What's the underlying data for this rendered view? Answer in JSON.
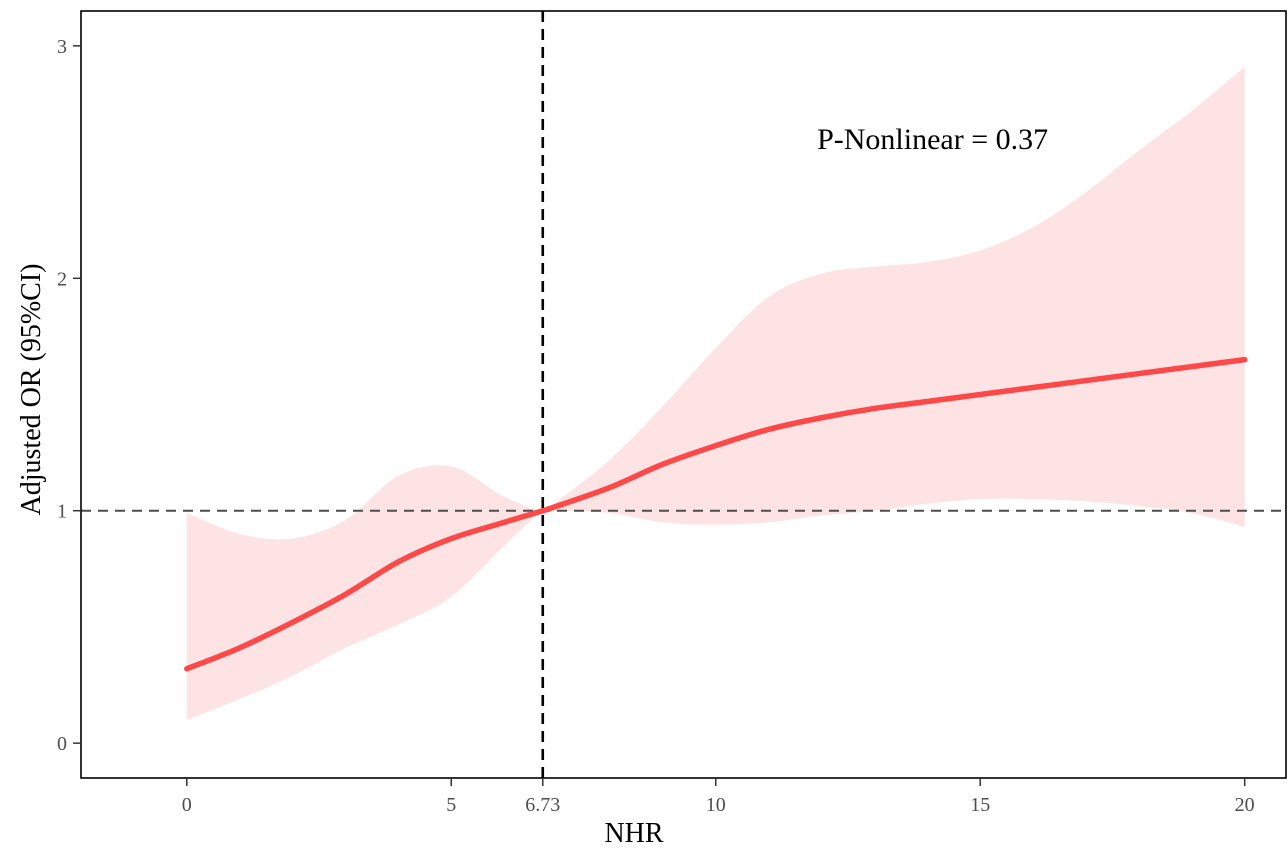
{
  "chart_data": {
    "type": "line",
    "xlabel": "NHR",
    "ylabel": "Adjusted OR (95%CI)",
    "xlim": [
      -2,
      20.8
    ],
    "ylim": [
      -0.15,
      3.15
    ],
    "x_ticks": [
      {
        "value": 0,
        "label": "0"
      },
      {
        "value": 5,
        "label": "5"
      },
      {
        "value": 6.73,
        "label": "6.73"
      },
      {
        "value": 10,
        "label": "10"
      },
      {
        "value": 15,
        "label": "15"
      },
      {
        "value": 20,
        "label": "20"
      }
    ],
    "y_ticks": [
      {
        "value": 0,
        "label": "0"
      },
      {
        "value": 1,
        "label": "1"
      },
      {
        "value": 2,
        "label": "2"
      },
      {
        "value": 3,
        "label": "3"
      }
    ],
    "reference_lines": [
      {
        "axis": "x",
        "value": 6.73,
        "style": "dashed",
        "color": "#000000"
      },
      {
        "axis": "y",
        "value": 1,
        "style": "dashed",
        "color": "#4d4d4d"
      }
    ],
    "annotation": {
      "text": "P-Nonlinear = 0.37",
      "x": 14.1,
      "y": 2.6
    },
    "series": [
      {
        "color": "#ff4848",
        "band_color": "#fde3e4",
        "x": [
          0,
          1,
          2,
          3,
          4,
          5,
          6,
          6.73,
          7,
          8,
          9,
          10,
          11,
          12,
          13,
          14,
          15,
          16,
          17,
          18,
          19,
          20
        ],
        "y": [
          0.32,
          0.41,
          0.52,
          0.64,
          0.78,
          0.88,
          0.95,
          1.0,
          1.02,
          1.1,
          1.2,
          1.28,
          1.35,
          1.4,
          1.44,
          1.47,
          1.5,
          1.53,
          1.56,
          1.59,
          1.62,
          1.65
        ],
        "lower": [
          0.1,
          0.19,
          0.29,
          0.41,
          0.51,
          0.63,
          0.85,
          1.0,
          1.0,
          0.99,
          0.95,
          0.94,
          0.95,
          0.98,
          1.0,
          1.03,
          1.05,
          1.05,
          1.04,
          1.02,
          0.99,
          0.93
        ],
        "upper": [
          0.99,
          0.9,
          0.88,
          0.96,
          1.15,
          1.19,
          1.06,
          1.0,
          1.04,
          1.22,
          1.45,
          1.7,
          1.92,
          2.02,
          2.05,
          2.07,
          2.12,
          2.22,
          2.37,
          2.55,
          2.72,
          2.91
        ]
      }
    ]
  }
}
